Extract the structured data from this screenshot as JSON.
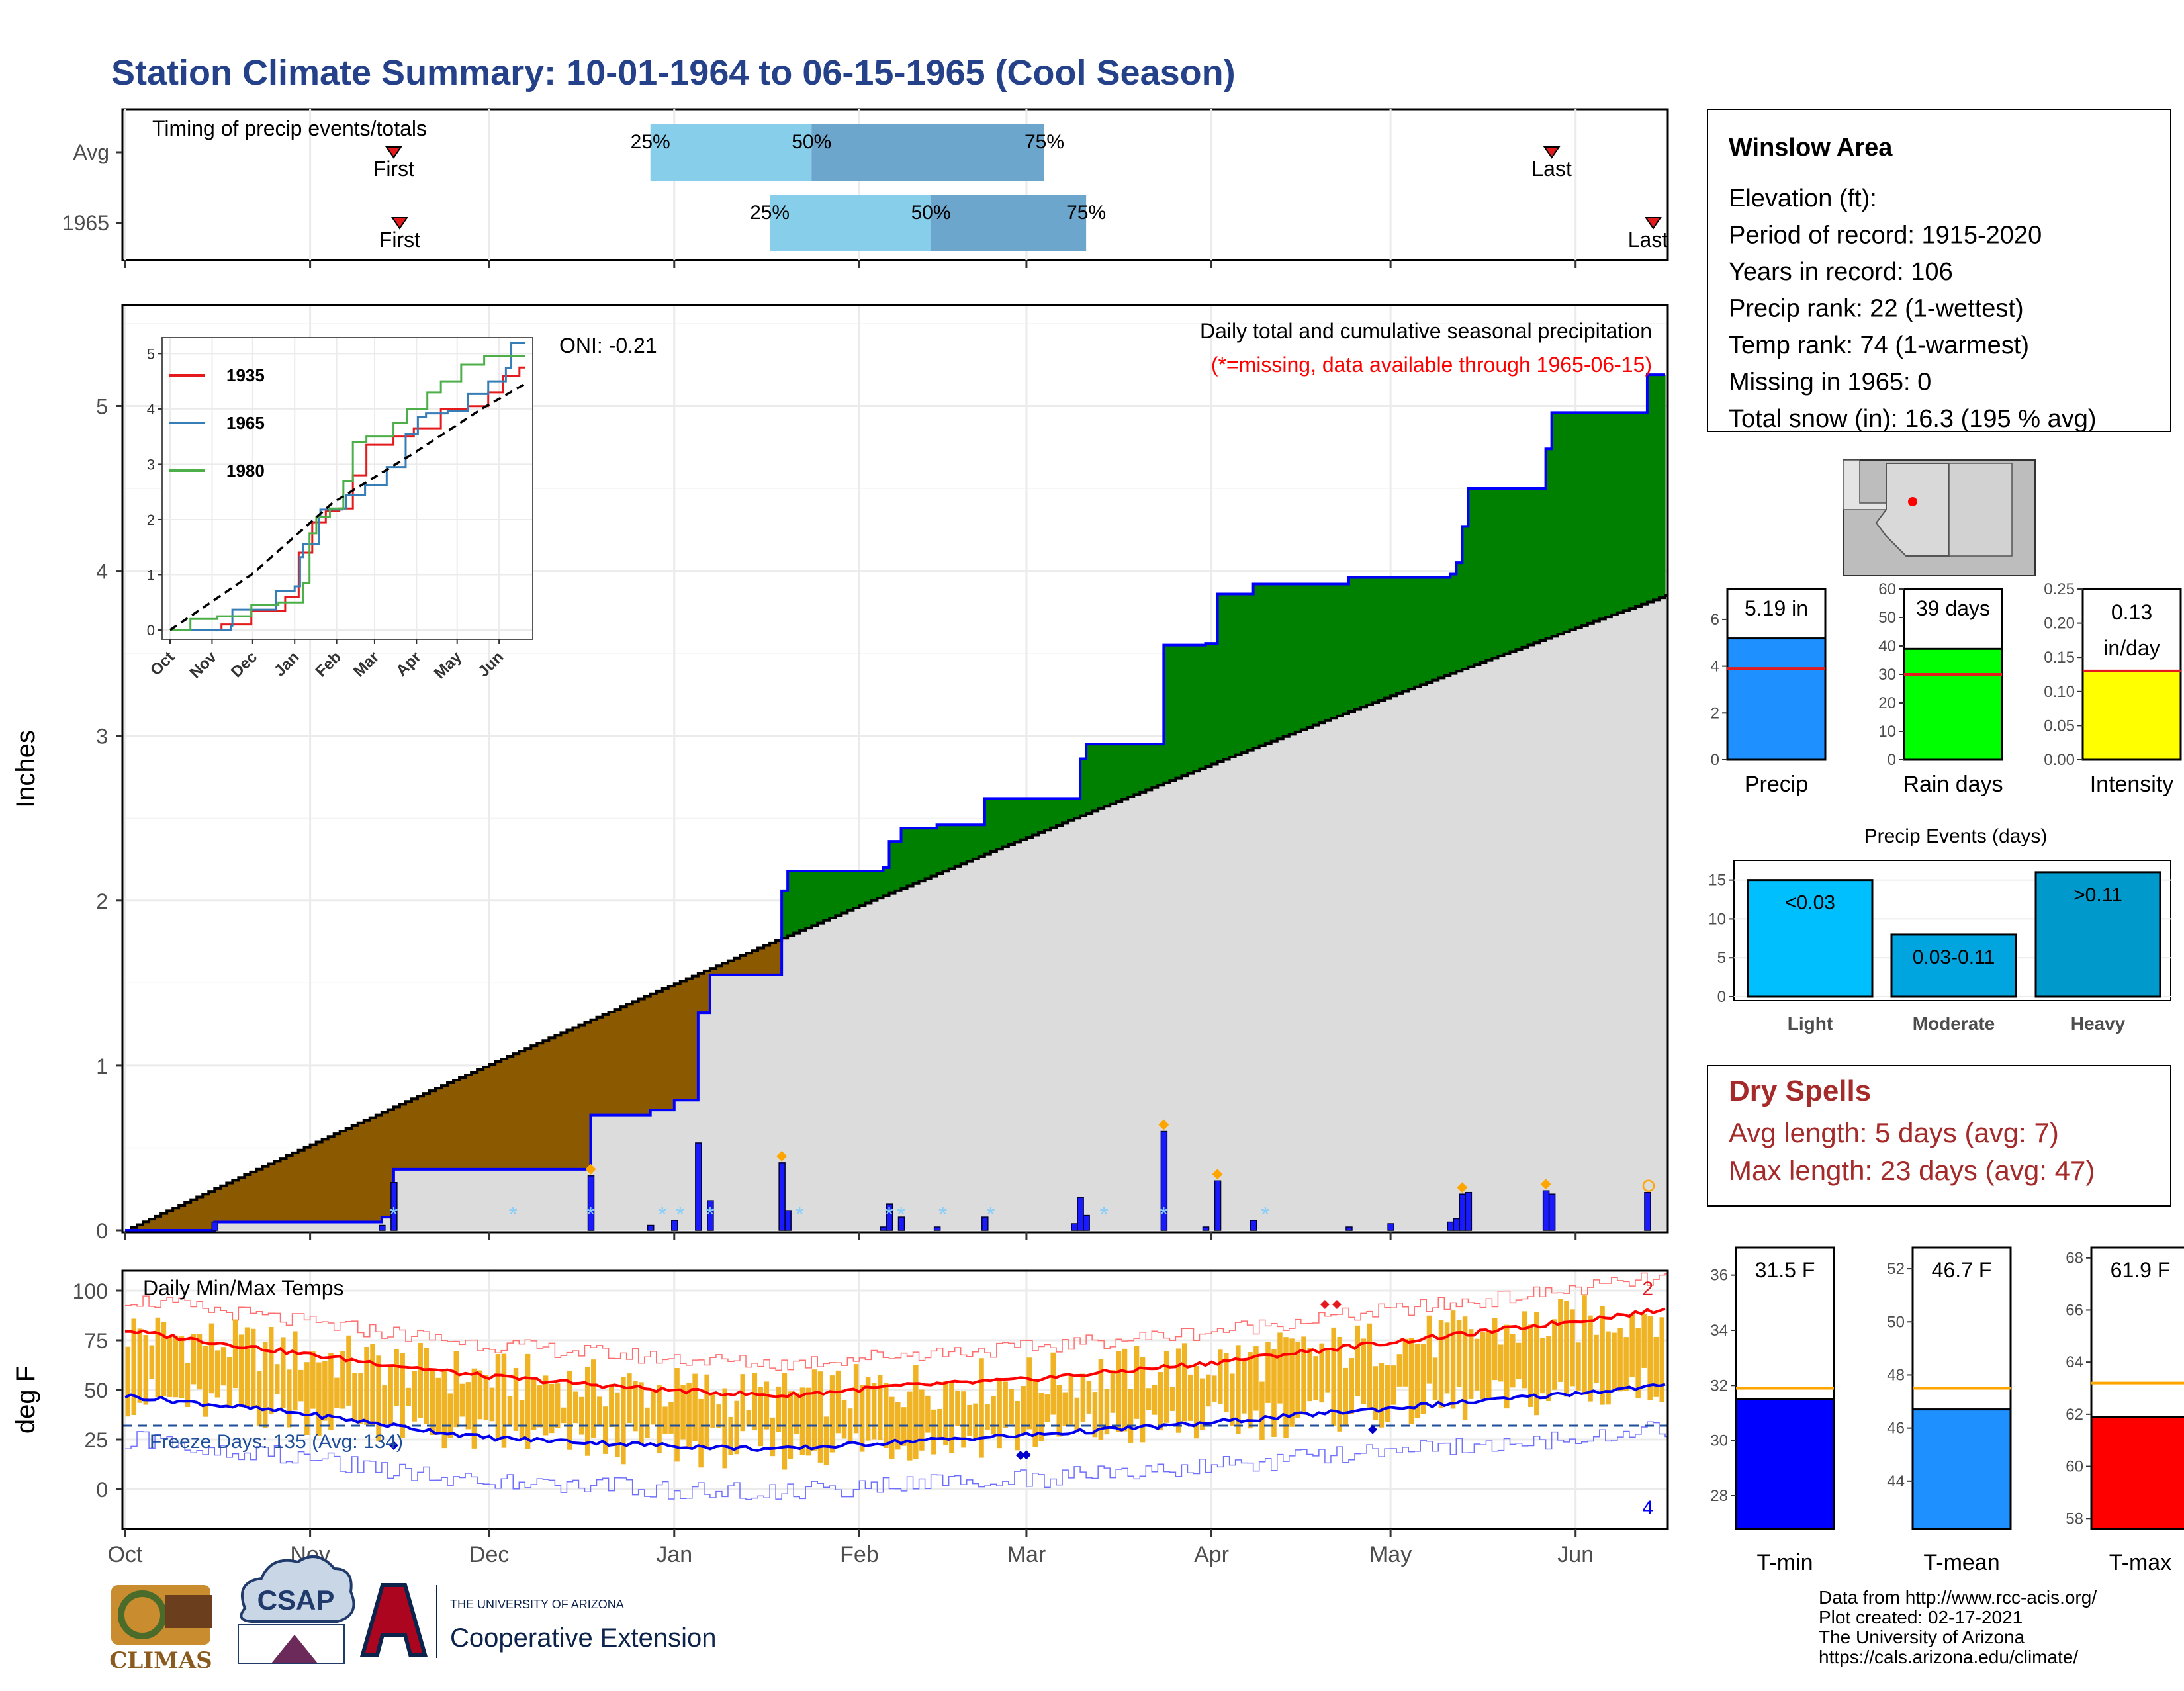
{
  "title": "Station Climate Summary: 10-01-1964 to 06-15-1965 (Cool Season)",
  "months": [
    "Oct",
    "Nov",
    "Dec",
    "Jan",
    "Feb",
    "Mar",
    "Apr",
    "May",
    "Jun"
  ],
  "timing": {
    "title": "Timing of precip events/totals",
    "rows": [
      {
        "label": "Avg",
        "first_label": "First",
        "last_label": "Last",
        "first": "11-15",
        "last": "05-28",
        "q25": "12-28",
        "q50": "01-24",
        "q75": "03-04",
        "l25": "25%",
        "l50": "50%",
        "l75": "75%"
      },
      {
        "label": "1965",
        "first_label": "First",
        "last_label": "Last",
        "first": "11-16",
        "last": "06-14",
        "q25": "01-17",
        "q50": "02-13",
        "q75": "03-11",
        "l25": "25%",
        "l50": "50%",
        "l75": "75%"
      }
    ]
  },
  "precip": {
    "ylabel": "Inches",
    "header": "Daily total and cumulative seasonal precipitation",
    "missing_note": "(*=missing, data available through 1965-06-15)",
    "oni": "ONI: -0.21",
    "y_ticks": [
      "0",
      "1",
      "2",
      "3",
      "4",
      "5"
    ],
    "ylim": [
      0,
      5.6
    ],
    "avg_end": 3.85,
    "cumulative_1965": [
      {
        "date": "1964-10-01",
        "value": 0.0
      },
      {
        "date": "1964-10-16",
        "value": 0.05
      },
      {
        "date": "1964-11-13",
        "value": 0.08
      },
      {
        "date": "1964-11-15",
        "value": 0.37
      },
      {
        "date": "1964-12-18",
        "value": 0.7
      },
      {
        "date": "1964-12-28",
        "value": 0.73
      },
      {
        "date": "1965-01-01",
        "value": 0.79
      },
      {
        "date": "1965-01-05",
        "value": 1.32
      },
      {
        "date": "1965-01-07",
        "value": 1.55
      },
      {
        "date": "1965-01-19",
        "value": 2.06
      },
      {
        "date": "1965-01-20",
        "value": 2.18
      },
      {
        "date": "1965-02-05",
        "value": 2.2
      },
      {
        "date": "1965-02-06",
        "value": 2.36
      },
      {
        "date": "1965-02-08",
        "value": 2.44
      },
      {
        "date": "1965-02-14",
        "value": 2.46
      },
      {
        "date": "1965-02-22",
        "value": 2.62
      },
      {
        "date": "1965-03-10",
        "value": 2.86
      },
      {
        "date": "1965-03-11",
        "value": 2.95
      },
      {
        "date": "1965-03-24",
        "value": 3.55
      },
      {
        "date": "1965-03-31",
        "value": 3.56
      },
      {
        "date": "1965-04-02",
        "value": 3.86
      },
      {
        "date": "1965-04-08",
        "value": 3.92
      },
      {
        "date": "1965-04-24",
        "value": 3.96
      },
      {
        "date": "1965-05-11",
        "value": 3.98
      },
      {
        "date": "1965-05-12",
        "value": 4.05
      },
      {
        "date": "1965-05-13",
        "value": 4.27
      },
      {
        "date": "1965-05-14",
        "value": 4.5
      },
      {
        "date": "1965-05-27",
        "value": 4.74
      },
      {
        "date": "1965-05-28",
        "value": 4.96
      },
      {
        "date": "1965-06-13",
        "value": 5.19
      }
    ],
    "daily_bars": [
      {
        "date": "1964-10-16",
        "value": 0.05
      },
      {
        "date": "1964-11-13",
        "value": 0.03
      },
      {
        "date": "1964-11-15",
        "value": 0.29
      },
      {
        "date": "1964-12-18",
        "value": 0.33
      },
      {
        "date": "1964-12-28",
        "value": 0.03
      },
      {
        "date": "1965-01-01",
        "value": 0.06
      },
      {
        "date": "1965-01-05",
        "value": 0.53
      },
      {
        "date": "1965-01-07",
        "value": 0.18
      },
      {
        "date": "1965-01-19",
        "value": 0.41
      },
      {
        "date": "1965-01-20",
        "value": 0.12
      },
      {
        "date": "1965-02-05",
        "value": 0.02
      },
      {
        "date": "1965-02-06",
        "value": 0.16
      },
      {
        "date": "1965-02-08",
        "value": 0.08
      },
      {
        "date": "1965-02-14",
        "value": 0.02
      },
      {
        "date": "1965-02-22",
        "value": 0.08
      },
      {
        "date": "1965-03-09",
        "value": 0.04
      },
      {
        "date": "1965-03-10",
        "value": 0.2
      },
      {
        "date": "1965-03-11",
        "value": 0.09
      },
      {
        "date": "1965-03-24",
        "value": 0.6
      },
      {
        "date": "1965-03-31",
        "value": 0.02
      },
      {
        "date": "1965-04-02",
        "value": 0.3
      },
      {
        "date": "1965-04-08",
        "value": 0.06
      },
      {
        "date": "1965-04-24",
        "value": 0.02
      },
      {
        "date": "1965-05-01",
        "value": 0.04
      },
      {
        "date": "1965-05-11",
        "value": 0.05
      },
      {
        "date": "1965-05-12",
        "value": 0.07
      },
      {
        "date": "1965-05-13",
        "value": 0.22
      },
      {
        "date": "1965-05-14",
        "value": 0.23
      },
      {
        "date": "1965-05-27",
        "value": 0.24
      },
      {
        "date": "1965-05-28",
        "value": 0.22
      },
      {
        "date": "1965-06-13",
        "value": 0.23
      }
    ],
    "event_markers": [
      "1964-12-18",
      "1965-01-19",
      "1965-03-24",
      "1965-04-02",
      "1965-05-13",
      "1965-05-27"
    ],
    "snow_markers": [
      "1964-11-15",
      "1964-12-05",
      "1964-12-18",
      "1964-12-30",
      "1965-01-02",
      "1965-01-07",
      "1965-01-22",
      "1965-02-06",
      "1965-02-08",
      "1965-02-15",
      "1965-02-23",
      "1965-03-14",
      "1965-03-24",
      "1965-04-10"
    ]
  },
  "inset": {
    "legend": [
      {
        "label": "1935",
        "color": "#e41a1c"
      },
      {
        "label": "1965",
        "color": "#377eb8"
      },
      {
        "label": "1980",
        "color": "#4daf4a"
      }
    ],
    "y_ticks": [
      "0",
      "1",
      "2",
      "3",
      "4",
      "5"
    ],
    "x_ticks": [
      "Oct",
      "Nov",
      "Dec",
      "Jan",
      "Feb",
      "Mar",
      "Apr",
      "May",
      "Jun"
    ],
    "series": [
      {
        "name": "1935",
        "points": [
          [
            0,
            0
          ],
          [
            15,
            0
          ],
          [
            38,
            0.1
          ],
          [
            60,
            0.35
          ],
          [
            85,
            0.6
          ],
          [
            95,
            1.4
          ],
          [
            105,
            1.95
          ],
          [
            115,
            2.15
          ],
          [
            125,
            2.2
          ],
          [
            135,
            2.8
          ],
          [
            145,
            3.35
          ],
          [
            165,
            3.5
          ],
          [
            180,
            3.65
          ],
          [
            200,
            4.0
          ],
          [
            220,
            4.05
          ],
          [
            235,
            4.3
          ],
          [
            246,
            4.6
          ],
          [
            258,
            4.75
          ],
          [
            262,
            4.75
          ]
        ]
      },
      {
        "name": "1965",
        "points": [
          [
            0,
            0
          ],
          [
            45,
            0.08
          ],
          [
            46,
            0.37
          ],
          [
            78,
            0.7
          ],
          [
            92,
            0.79
          ],
          [
            96,
            1.32
          ],
          [
            98,
            1.55
          ],
          [
            110,
            2.06
          ],
          [
            111,
            2.18
          ],
          [
            127,
            2.2
          ],
          [
            130,
            2.44
          ],
          [
            144,
            2.62
          ],
          [
            160,
            2.95
          ],
          [
            174,
            3.55
          ],
          [
            183,
            3.86
          ],
          [
            189,
            3.92
          ],
          [
            205,
            3.96
          ],
          [
            220,
            4.27
          ],
          [
            235,
            4.5
          ],
          [
            248,
            4.74
          ],
          [
            252,
            5.19
          ],
          [
            262,
            5.19
          ]
        ]
      },
      {
        "name": "1980",
        "points": [
          [
            0,
            0
          ],
          [
            15,
            0.2
          ],
          [
            35,
            0.25
          ],
          [
            60,
            0.45
          ],
          [
            80,
            0.5
          ],
          [
            98,
            0.85
          ],
          [
            103,
            1.75
          ],
          [
            108,
            2.05
          ],
          [
            118,
            2.2
          ],
          [
            128,
            2.7
          ],
          [
            135,
            3.4
          ],
          [
            145,
            3.5
          ],
          [
            165,
            3.75
          ],
          [
            175,
            4.0
          ],
          [
            190,
            4.3
          ],
          [
            200,
            4.5
          ],
          [
            215,
            4.8
          ],
          [
            232,
            4.95
          ],
          [
            262,
            4.95
          ]
        ]
      }
    ],
    "avg_series": [
      [
        0,
        0
      ],
      [
        60,
        1.0
      ],
      [
        120,
        2.3
      ],
      [
        180,
        3.2
      ],
      [
        230,
        4.0
      ],
      [
        262,
        4.45
      ]
    ]
  },
  "temps": {
    "title": "Daily Min/Max Temps",
    "ylabel": "deg F",
    "y_ticks": [
      "0",
      "25",
      "50",
      "75",
      "100"
    ],
    "ylim": [
      -20,
      110
    ],
    "freeze_text": "Freeze Days: 135 (Avg: 134)",
    "freeze_line": 32,
    "record_high_count": "2",
    "record_low_count": "4",
    "record_high_dates": [
      "1965-04-20",
      "1965-04-22"
    ],
    "record_low_dates": [
      "1964-11-15",
      "1965-02-28",
      "1965-03-01",
      "1965-04-28"
    ],
    "avg_max": [
      [
        0,
        80
      ],
      [
        30,
        68
      ],
      [
        60,
        57
      ],
      [
        90,
        50
      ],
      [
        110,
        47
      ],
      [
        130,
        52
      ],
      [
        150,
        55
      ],
      [
        180,
        63
      ],
      [
        200,
        70
      ],
      [
        230,
        80
      ],
      [
        257,
        90
      ]
    ],
    "avg_min": [
      [
        0,
        47
      ],
      [
        30,
        38
      ],
      [
        60,
        26
      ],
      [
        90,
        22
      ],
      [
        110,
        20
      ],
      [
        130,
        24
      ],
      [
        150,
        27
      ],
      [
        180,
        33
      ],
      [
        200,
        38
      ],
      [
        230,
        45
      ],
      [
        257,
        52
      ]
    ]
  },
  "station": {
    "name": "Winslow Area",
    "lines": [
      "Elevation (ft):",
      "Period of record: 1915-2020",
      "Years in record: 106",
      "Precip rank: 22 (1-wettest)",
      "Temp rank: 74 (1-warmest)",
      "Missing in 1965: 0",
      "Total snow (in): 16.3 (195 % avg)"
    ]
  },
  "precip_bars": [
    {
      "label": "Precip",
      "value_label": "5.19 in",
      "value": 5.19,
      "avg": 3.9,
      "ticks": [
        "0",
        "2",
        "4",
        "6"
      ],
      "ymax": 7.3,
      "color": "#1e90ff"
    },
    {
      "label": "Rain days",
      "value_label": "39 days",
      "value": 39,
      "avg": 30,
      "ticks": [
        "0",
        "10",
        "20",
        "30",
        "40",
        "50",
        "60"
      ],
      "ymax": 60,
      "color": "#00ff00"
    },
    {
      "label": "Intensity",
      "value_label": "0.13",
      "value_label2": "in/day",
      "value": 0.13,
      "avg": 0.13,
      "ticks": [
        "0.00",
        "0.05",
        "0.10",
        "0.15",
        "0.20",
        "0.25"
      ],
      "ymax": 0.25,
      "color": "#ffff00"
    }
  ],
  "precip_events": {
    "title": "Precip Events (days)",
    "categories": [
      "Light",
      "Moderate",
      "Heavy"
    ],
    "bar_labels": [
      "<0.03",
      "0.03-0.11",
      ">0.11"
    ],
    "values": [
      15,
      8,
      16
    ],
    "y_ticks": [
      "0",
      "5",
      "10",
      "15"
    ],
    "colors": [
      "#00bfff",
      "#00a5e0",
      "#0099cc"
    ]
  },
  "dry_spells": {
    "title": "Dry Spells",
    "avg_line": "Avg length: 5 days (avg: 7)",
    "max_line": "Max length: 23 days (avg: 47)"
  },
  "temp_bars": [
    {
      "label": "T-min",
      "value_label": "31.5 F",
      "value": 31.5,
      "avg": 31.9,
      "ticks": [
        "28",
        "30",
        "32",
        "34",
        "36"
      ],
      "ymin": 26.8,
      "ymax": 37,
      "color": "#0000ff"
    },
    {
      "label": "T-mean",
      "value_label": "46.7 F",
      "value": 46.7,
      "avg": 47.5,
      "ticks": [
        "44",
        "46",
        "48",
        "50",
        "52"
      ],
      "ymin": 42.2,
      "ymax": 52.8,
      "color": "#1e90ff"
    },
    {
      "label": "T-max",
      "value_label": "61.9 F",
      "value": 61.9,
      "avg": 63.2,
      "ticks": [
        "58",
        "60",
        "62",
        "64",
        "66",
        "68"
      ],
      "ymin": 57.6,
      "ymax": 68.4,
      "color": "#ff0000"
    }
  ],
  "footer": {
    "logo1": "CLIMAS",
    "logo2": "CSAP",
    "logo3_small": "THE UNIVERSITY OF ARIZONA",
    "logo3_big": "Cooperative Extension",
    "credits": [
      "Data from http://www.rcc-acis.org/",
      "Plot created: 02-17-2021",
      "The University of Arizona",
      "https://cals.arizona.edu/climate/"
    ]
  }
}
